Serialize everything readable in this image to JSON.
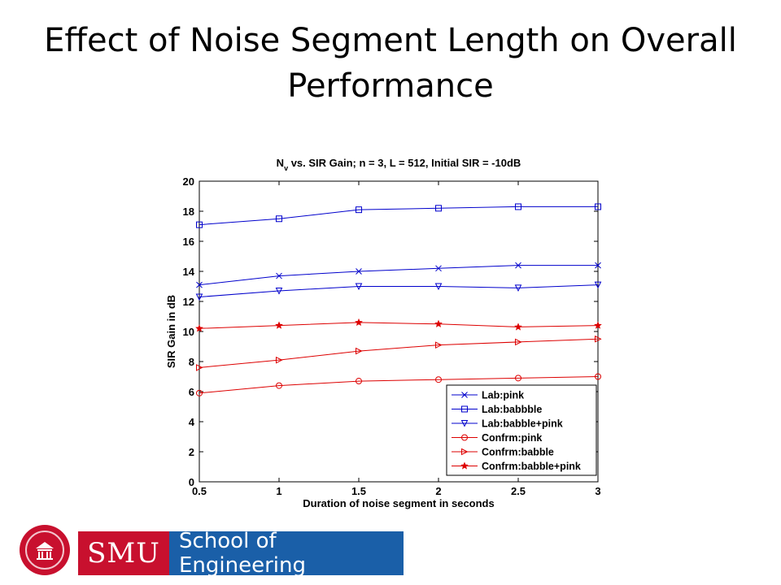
{
  "slide": {
    "title": "Effect of Noise Segment Length on Overall Performance"
  },
  "footer": {
    "badge_text": "SMU",
    "school_text": "School of Engineering"
  },
  "chart_data": {
    "type": "line",
    "title_prefix": "N",
    "title_subscript": "v",
    "title_rest": " vs. SIR Gain; n = 3, L = 512, Initial SIR = -10dB",
    "xlabel": "Duration of noise segment in seconds",
    "ylabel": "SIR Gain in dB",
    "xlim": [
      0.5,
      3
    ],
    "ylim": [
      0,
      20
    ],
    "xticks": [
      "0.5",
      "1",
      "1.5",
      "2",
      "2.5",
      "3"
    ],
    "yticks": [
      "0",
      "2",
      "4",
      "6",
      "8",
      "10",
      "12",
      "14",
      "16",
      "18",
      "20"
    ],
    "grid": false,
    "legend_position": "bottom-right",
    "x": [
      0.5,
      1,
      1.5,
      2,
      2.5,
      3
    ],
    "series": [
      {
        "name": "Lab:pink",
        "color": "#0000cc",
        "marker": "x",
        "values": [
          13.1,
          13.7,
          14.0,
          14.2,
          14.4,
          14.4
        ]
      },
      {
        "name": "Lab:babbble",
        "color": "#0000cc",
        "marker": "square",
        "values": [
          17.1,
          17.5,
          18.1,
          18.2,
          18.3,
          18.3
        ]
      },
      {
        "name": "Lab:babble+pink",
        "color": "#0000cc",
        "marker": "triangle-down",
        "values": [
          12.3,
          12.7,
          13.0,
          13.0,
          12.9,
          13.1
        ]
      },
      {
        "name": "Confrm:pink",
        "color": "#dd0000",
        "marker": "circle",
        "values": [
          5.9,
          6.4,
          6.7,
          6.8,
          6.9,
          7.0
        ]
      },
      {
        "name": "Confrm:babble",
        "color": "#dd0000",
        "marker": "triangle-right",
        "values": [
          7.6,
          8.1,
          8.7,
          9.1,
          9.3,
          9.5
        ]
      },
      {
        "name": "Confrm:babble+pink",
        "color": "#dd0000",
        "marker": "star",
        "values": [
          10.2,
          10.4,
          10.6,
          10.5,
          10.3,
          10.4
        ]
      }
    ]
  }
}
